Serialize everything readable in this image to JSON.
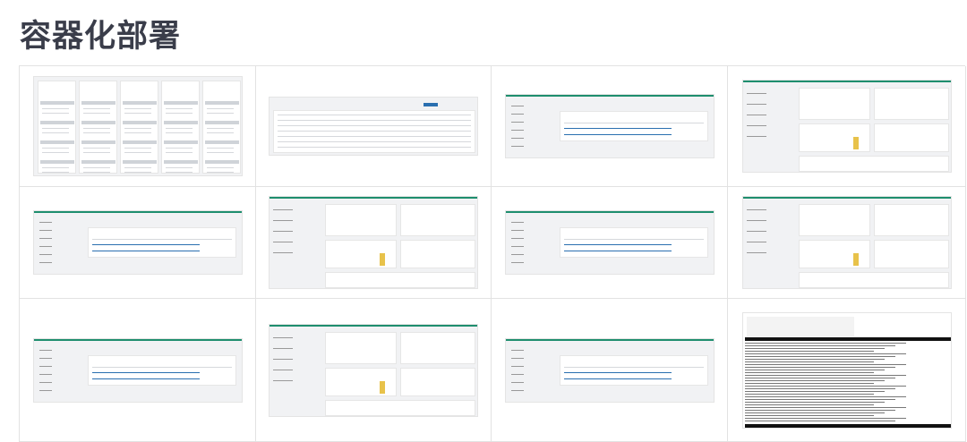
{
  "page": {
    "title": "容器化部署"
  },
  "thumbnails": [
    {
      "kind": "kanban"
    },
    {
      "kind": "table"
    },
    {
      "kind": "detail"
    },
    {
      "kind": "dashboard"
    },
    {
      "kind": "detail"
    },
    {
      "kind": "dashboard"
    },
    {
      "kind": "detail"
    },
    {
      "kind": "dashboard"
    },
    {
      "kind": "detail"
    },
    {
      "kind": "dashboard"
    },
    {
      "kind": "detail"
    },
    {
      "kind": "terminal"
    }
  ],
  "colors": {
    "accent": "#1e8e6e",
    "link": "#2a6fb0",
    "chart": "#e8c24a",
    "title": "#3a3d4a"
  }
}
